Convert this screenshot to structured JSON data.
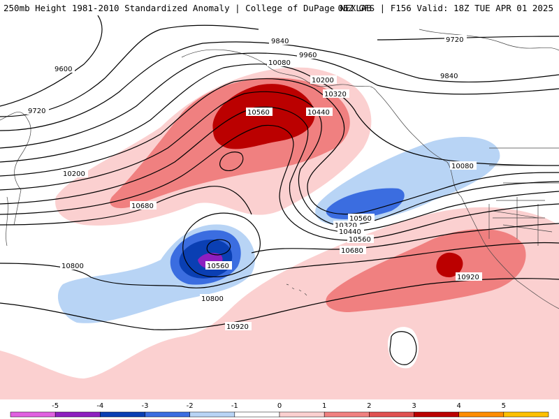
{
  "header": {
    "title_left": "250mb Height 1981-2010 Standardized Anomaly | College of DuPage NEXLAB",
    "title_right": "06Z GFS | F156 Valid: 18Z TUE APR 01 2025"
  },
  "contour_labels": [
    "9600",
    "9720",
    "9840",
    "9960",
    "10080",
    "10200",
    "10320",
    "10440",
    "10560",
    "10680",
    "10800",
    "10920",
    "9720",
    "9840",
    "10080",
    "10200",
    "10320",
    "10440",
    "10560",
    "10680",
    "10560",
    "10800",
    "10920",
    "10560"
  ],
  "colorbar": {
    "ticks": [
      "-5",
      "-4",
      "-3",
      "-2",
      "-1",
      "0",
      "1",
      "2",
      "3",
      "4",
      "5"
    ],
    "colors": [
      "#e060e0",
      "#8e1fbf",
      "#0a3fb3",
      "#3b6de0",
      "#b8d4f5",
      "#ffffff",
      "#fbd0d0",
      "#f08080",
      "#e05050",
      "#bb0000",
      "#ff8c00",
      "#ffc000"
    ]
  }
}
